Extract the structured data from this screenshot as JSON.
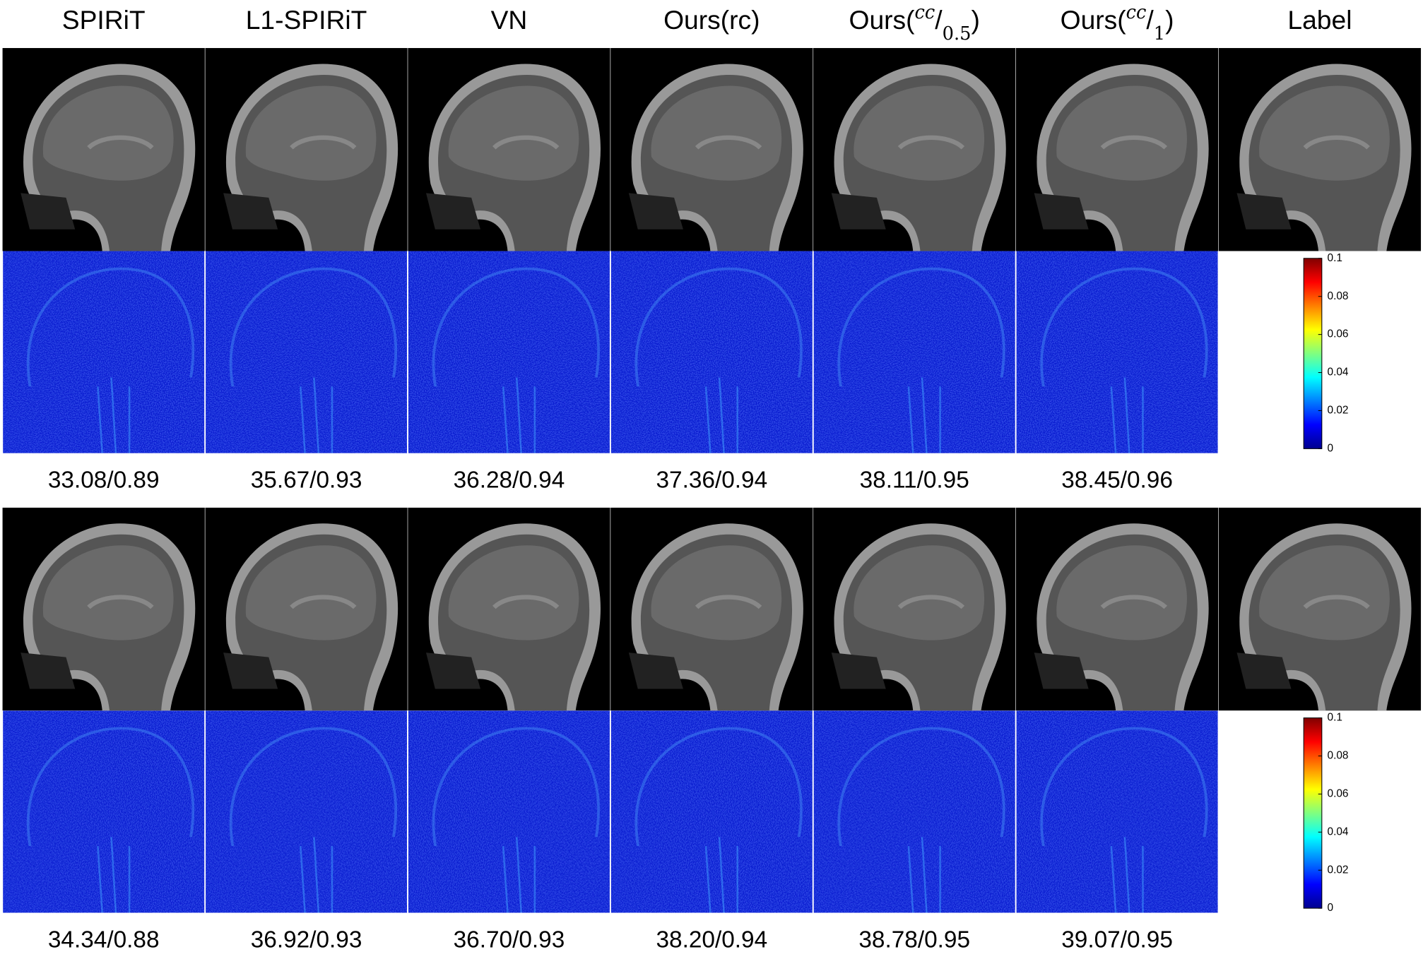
{
  "headers": [
    "SPIRiT",
    "L1-SPIRiT",
    "VN",
    "Ours(rc)",
    {
      "prefix": "Ours(",
      "sup": "cc",
      "slash": "/",
      "sub": "0.5",
      "suffix": ")"
    },
    {
      "prefix": "Ours(",
      "sup": "cc",
      "slash": "/",
      "sub": "1",
      "suffix": ")"
    },
    "Label"
  ],
  "groups": [
    {
      "metrics": [
        "33.08/0.89",
        "35.67/0.93",
        "36.28/0.94",
        "37.36/0.94",
        "38.11/0.95",
        "38.45/0.96"
      ],
      "colorbar_ticks": [
        "0.1",
        "0.08",
        "0.06",
        "0.04",
        "0.02",
        "0"
      ]
    },
    {
      "metrics": [
        "34.34/0.88",
        "36.92/0.93",
        "36.70/0.93",
        "38.20/0.94",
        "38.78/0.95",
        "39.07/0.95"
      ],
      "colorbar_ticks": [
        "0.1",
        "0.08",
        "0.06",
        "0.04",
        "0.02",
        "0"
      ]
    }
  ]
}
